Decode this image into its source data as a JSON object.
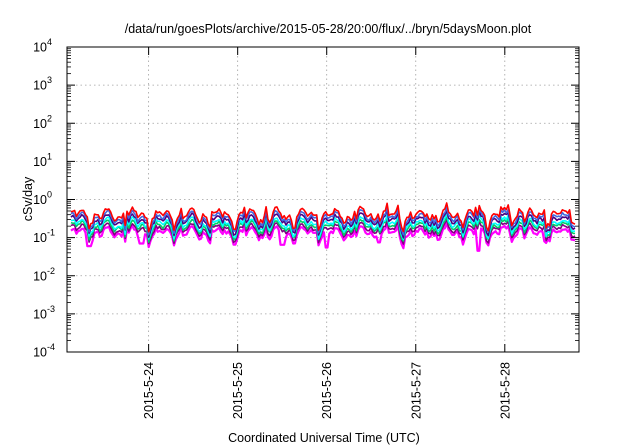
{
  "chart_data": {
    "type": "line",
    "title": "/data/run/goesPlots/archive/2015-05-28/20:00/flux/../bryn/5daysMoon.plot",
    "xlabel": "Coordinated Universal Time (UTC)",
    "ylabel": "cSv/day",
    "yscale": "log",
    "ylim": [
      0.0001,
      10000
    ],
    "xlim": [
      "2015-05-23T02:00",
      "2015-05-28T20:00"
    ],
    "grid": true,
    "x_ticks": [
      "2015-5-24",
      "2015-5-25",
      "2015-5-26",
      "2015-5-27",
      "2015-5-28"
    ],
    "y_ticks": [
      {
        "base": "10",
        "exp": "-4"
      },
      {
        "base": "10",
        "exp": "-3"
      },
      {
        "base": "10",
        "exp": "-2"
      },
      {
        "base": "10",
        "exp": "-1"
      },
      {
        "base": "10",
        "exp": "0"
      },
      {
        "base": "10",
        "exp": "1"
      },
      {
        "base": "10",
        "exp": "2"
      },
      {
        "base": "10",
        "exp": "3"
      },
      {
        "base": "10",
        "exp": "4"
      }
    ],
    "series": [
      {
        "color": "#ff00ff",
        "approx_level": 0.13,
        "dips": [
          {
            "x": "2015-05-23T08:00",
            "y": 0.06
          },
          {
            "x": "2015-05-23T22:00",
            "y": 0.07
          },
          {
            "x": "2015-05-25T12:00",
            "y": 0.065
          },
          {
            "x": "2015-05-26T00:00",
            "y": 0.055
          },
          {
            "x": "2015-05-26T14:00",
            "y": 0.075
          },
          {
            "x": "2015-05-27T17:00",
            "y": 0.045
          },
          {
            "x": "2015-05-28T11:00",
            "y": 0.08
          }
        ]
      },
      {
        "color": "#800080",
        "approx_level": 0.16
      },
      {
        "color": "#00cc66",
        "approx_level": 0.19
      },
      {
        "color": "#00ffff",
        "approx_level": 0.22
      },
      {
        "color": "#4b0082",
        "approx_level": 0.27
      },
      {
        "color": "#4169e1",
        "approx_level": 0.32
      },
      {
        "color": "#ff0000",
        "approx_level": 0.38
      }
    ]
  }
}
